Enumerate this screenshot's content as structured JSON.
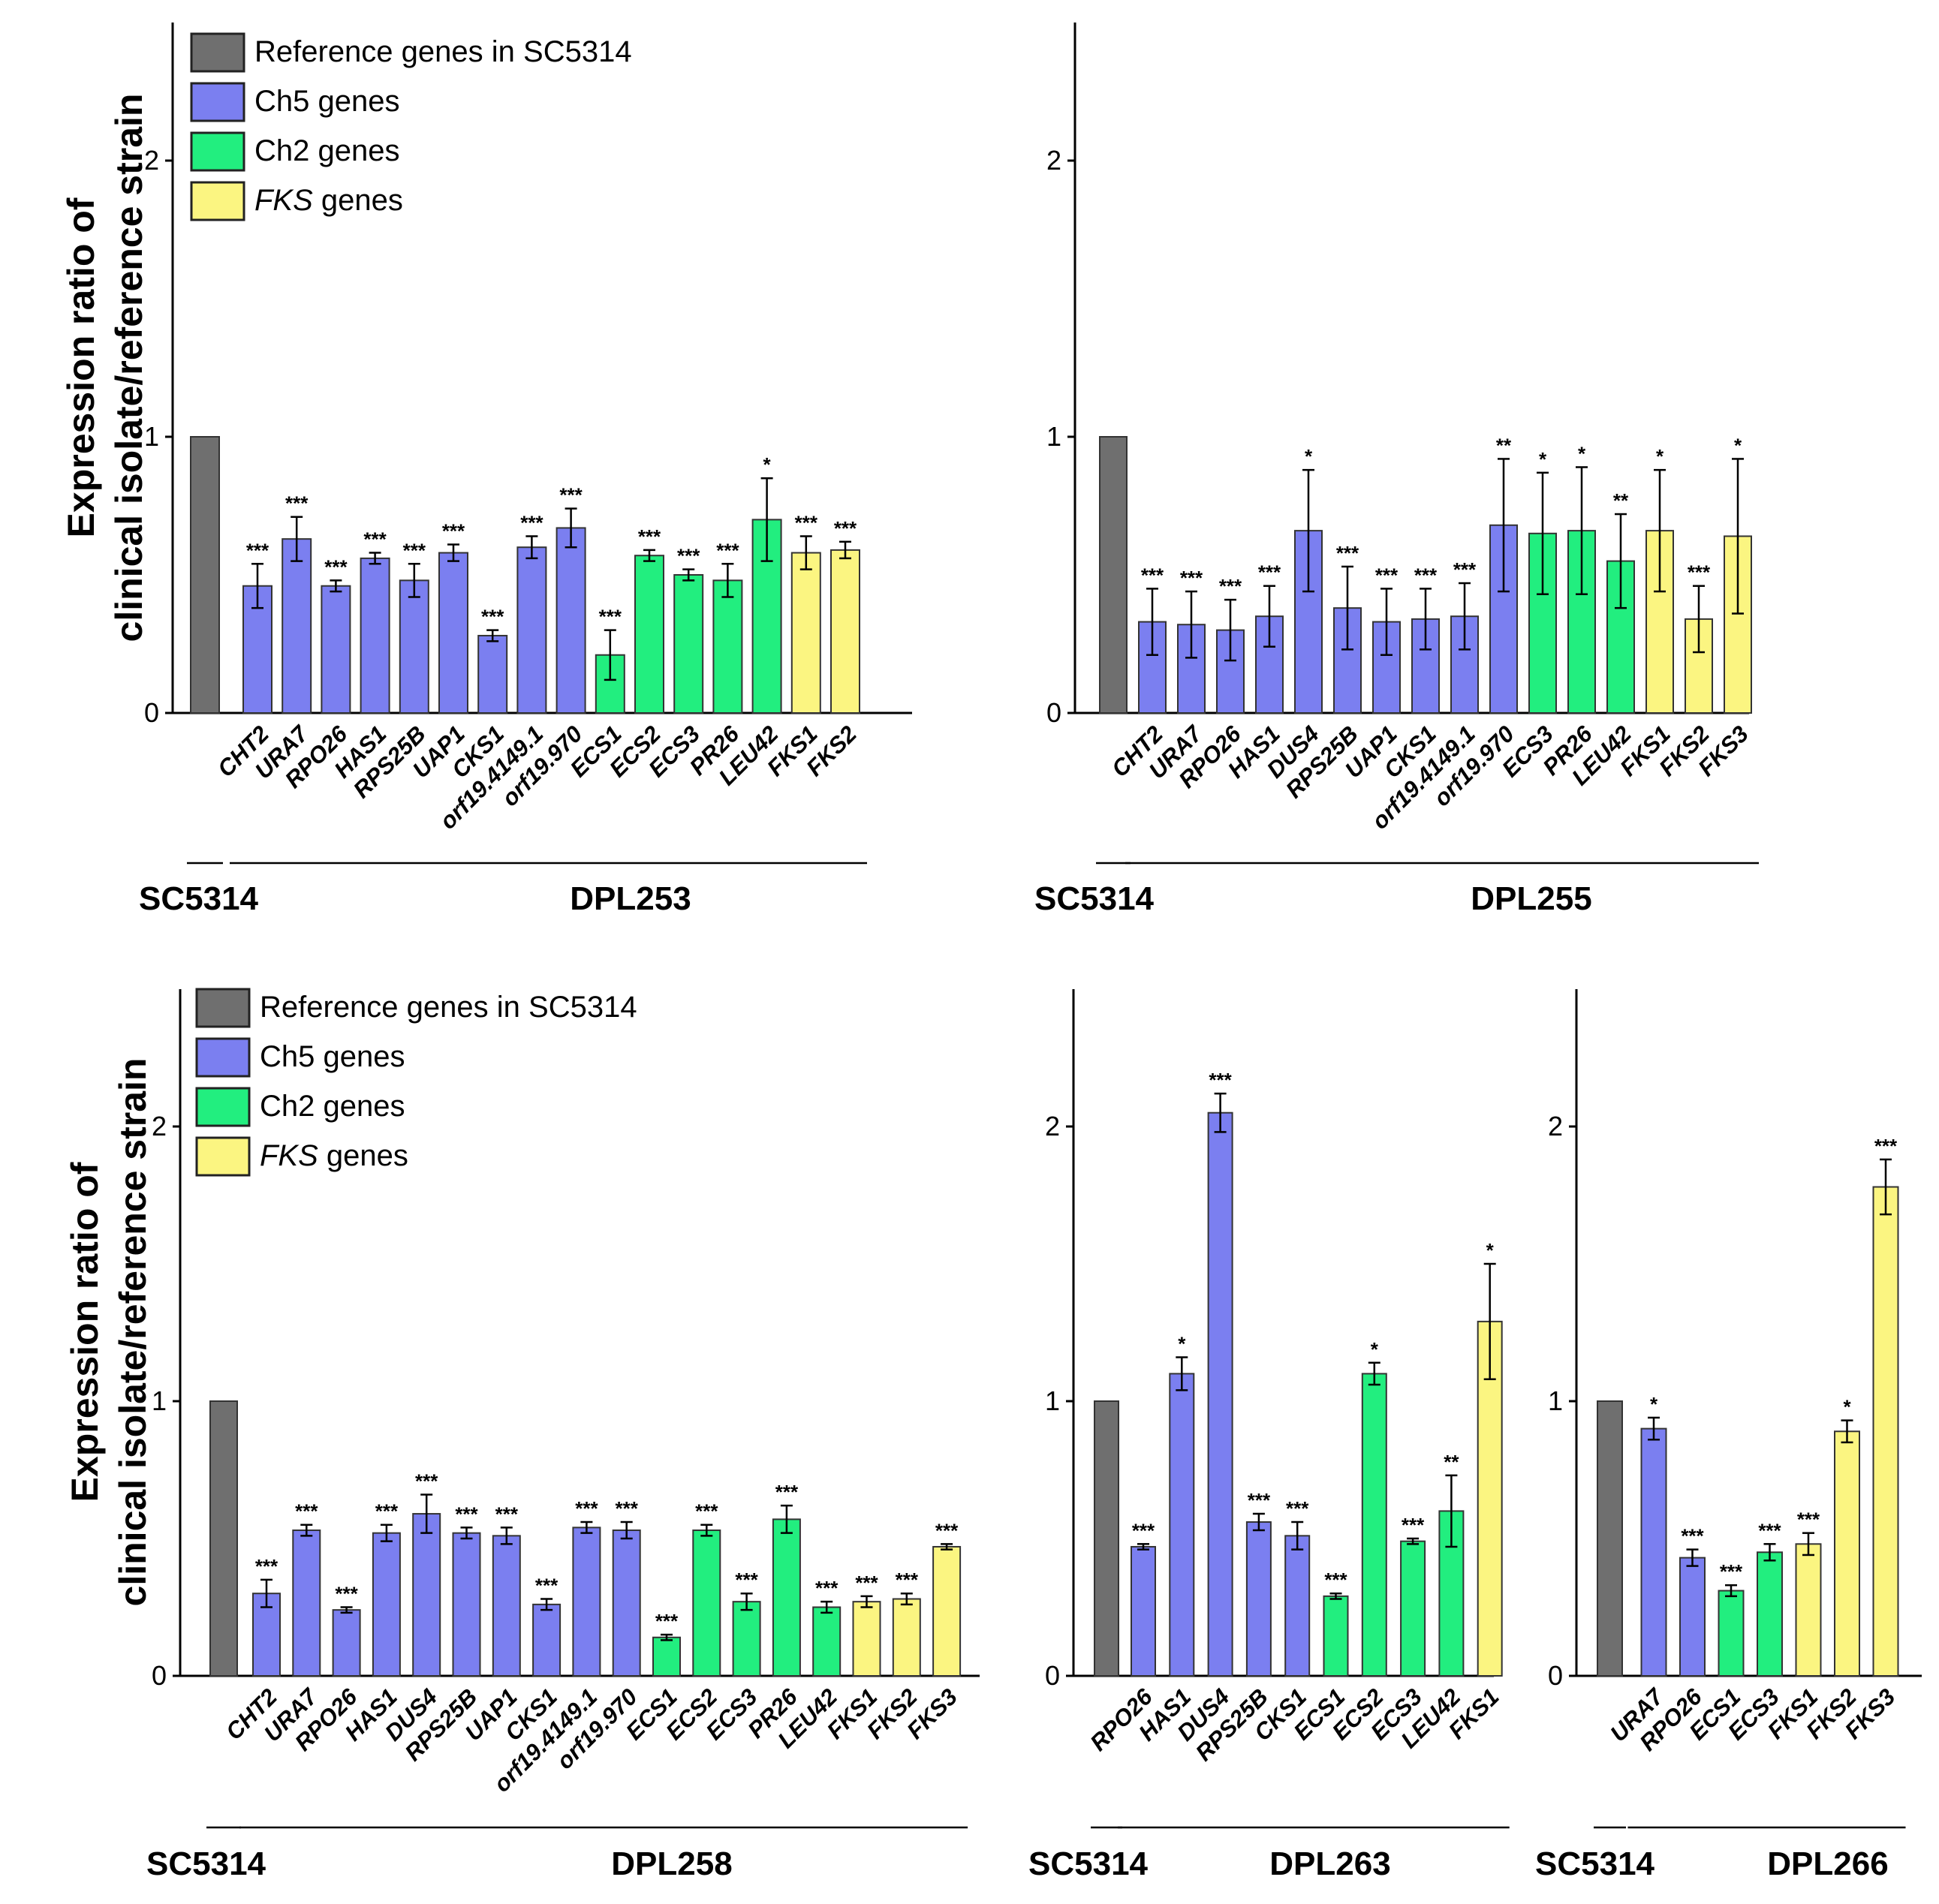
{
  "colors": {
    "ref": "#6f6f6f",
    "ch5": "#7b7ff0",
    "ch2": "#22ee7f",
    "fks": "#fbf581",
    "axis": "#000000"
  },
  "legend": [
    {
      "key": "ref",
      "label": "Reference genes in SC5314",
      "italic": "",
      "rest": ""
    },
    {
      "key": "ch5",
      "label": "Ch5 genes",
      "italic": "",
      "rest": ""
    },
    {
      "key": "ch2",
      "label": "Ch2 genes",
      "italic": "",
      "rest": ""
    },
    {
      "key": "fks",
      "label": "",
      "italic": "FKS",
      "rest": " genes"
    }
  ],
  "ylabel_line1": "Expression ratio of",
  "ylabel_line2": "clinical isolate/reference strain",
  "chart_data": [
    {
      "type": "bar",
      "ylabel": "Expression ratio of clinical isolate/reference strain",
      "ylim": [
        0,
        2.5
      ],
      "yticks": [
        "0",
        "1",
        "2"
      ],
      "ref_label": "SC5314",
      "group_label": "DPL253",
      "categories": [
        "CHT2",
        "URA7",
        "RPO26",
        "HAS1",
        "RPS25B",
        "UAP1",
        "CKS1",
        "orf19.4149.1",
        "orf19.970",
        "ECS1",
        "ECS2",
        "ECS3",
        "PR26",
        "LEU42",
        "FKS1",
        "FKS2"
      ],
      "values": [
        0.46,
        0.63,
        0.46,
        0.56,
        0.48,
        0.58,
        0.28,
        0.6,
        0.67,
        0.21,
        0.57,
        0.5,
        0.48,
        0.7,
        0.58,
        0.59
      ],
      "errors": [
        0.08,
        0.08,
        0.02,
        0.02,
        0.06,
        0.03,
        0.02,
        0.04,
        0.07,
        0.09,
        0.02,
        0.02,
        0.06,
        0.15,
        0.06,
        0.03
      ],
      "groups": [
        "ch5",
        "ch5",
        "ch5",
        "ch5",
        "ch5",
        "ch5",
        "ch5",
        "ch5",
        "ch5",
        "ch2",
        "ch2",
        "ch2",
        "ch2",
        "ch2",
        "fks",
        "fks"
      ],
      "significance": [
        "***",
        "***",
        "***",
        "***",
        "***",
        "***",
        "***",
        "***",
        "***",
        "***",
        "***",
        "***",
        "***",
        "*",
        "***",
        "***"
      ],
      "reference_value": 1.0,
      "legend": "top-left"
    },
    {
      "type": "bar",
      "ylim": [
        0,
        2.5
      ],
      "yticks": [
        "0",
        "1",
        "2"
      ],
      "ref_label": "SC5314",
      "group_label": "DPL255",
      "categories": [
        "CHT2",
        "URA7",
        "RPO26",
        "HAS1",
        "DUS4",
        "RPS25B",
        "UAP1",
        "CKS1",
        "orf19.4149.1",
        "orf19.970",
        "ECS3",
        "PR26",
        "LEU42",
        "FKS1",
        "FKS2",
        "FKS3"
      ],
      "values": [
        0.33,
        0.32,
        0.3,
        0.35,
        0.66,
        0.38,
        0.33,
        0.34,
        0.35,
        0.68,
        0.65,
        0.66,
        0.55,
        0.66,
        0.34,
        0.64
      ],
      "errors": [
        0.12,
        0.12,
        0.11,
        0.11,
        0.22,
        0.15,
        0.12,
        0.11,
        0.12,
        0.24,
        0.22,
        0.23,
        0.17,
        0.22,
        0.12,
        0.28
      ],
      "groups": [
        "ch5",
        "ch5",
        "ch5",
        "ch5",
        "ch5",
        "ch5",
        "ch5",
        "ch5",
        "ch5",
        "ch5",
        "ch2",
        "ch2",
        "ch2",
        "fks",
        "fks",
        "fks"
      ],
      "significance": [
        "***",
        "***",
        "***",
        "***",
        "*",
        "***",
        "***",
        "***",
        "***",
        "**",
        "*",
        "*",
        "**",
        "*",
        "***",
        "*"
      ],
      "reference_value": 1.0
    },
    {
      "type": "bar",
      "ylabel": "Expression ratio of clinical isolate/reference strain",
      "ylim": [
        0,
        2.5
      ],
      "yticks": [
        "0",
        "1",
        "2"
      ],
      "ref_label": "SC5314",
      "group_label": "DPL258",
      "categories": [
        "CHT2",
        "URA7",
        "RPO26",
        "HAS1",
        "DUS4",
        "RPS25B",
        "UAP1",
        "CKS1",
        "orf19.4149.1",
        "orf19.970",
        "ECS1",
        "ECS2",
        "ECS3",
        "PR26",
        "LEU42",
        "FKS1",
        "FKS2",
        "FKS3"
      ],
      "values": [
        0.3,
        0.53,
        0.24,
        0.52,
        0.59,
        0.52,
        0.51,
        0.26,
        0.54,
        0.53,
        0.14,
        0.53,
        0.27,
        0.57,
        0.25,
        0.27,
        0.28,
        0.47
      ],
      "errors": [
        0.05,
        0.02,
        0.01,
        0.03,
        0.07,
        0.02,
        0.03,
        0.02,
        0.02,
        0.03,
        0.01,
        0.02,
        0.03,
        0.05,
        0.02,
        0.02,
        0.02,
        0.01
      ],
      "groups": [
        "ch5",
        "ch5",
        "ch5",
        "ch5",
        "ch5",
        "ch5",
        "ch5",
        "ch5",
        "ch5",
        "ch5",
        "ch2",
        "ch2",
        "ch2",
        "ch2",
        "ch2",
        "fks",
        "fks",
        "fks"
      ],
      "significance": [
        "***",
        "***",
        "***",
        "***",
        "***",
        "***",
        "***",
        "***",
        "***",
        "***",
        "***",
        "***",
        "***",
        "***",
        "***",
        "***",
        "***",
        "***"
      ],
      "reference_value": 1.0,
      "legend": "top-left"
    },
    {
      "type": "bar",
      "ylim": [
        0,
        2.5
      ],
      "yticks": [
        "0",
        "1",
        "2"
      ],
      "ref_label": "SC5314",
      "group_label": "DPL263",
      "categories": [
        "RPO26",
        "HAS1",
        "DUS4",
        "RPS25B",
        "CKS1",
        "ECS1",
        "ECS2",
        "ECS3",
        "LEU42",
        "FKS1"
      ],
      "values": [
        0.47,
        1.1,
        2.05,
        0.56,
        0.51,
        0.29,
        1.1,
        0.49,
        0.6,
        1.29
      ],
      "errors": [
        0.01,
        0.06,
        0.07,
        0.03,
        0.05,
        0.01,
        0.04,
        0.01,
        0.13,
        0.21
      ],
      "groups": [
        "ch5",
        "ch5",
        "ch5",
        "ch5",
        "ch5",
        "ch2",
        "ch2",
        "ch2",
        "ch2",
        "fks"
      ],
      "significance": [
        "***",
        "*",
        "***",
        "***",
        "***",
        "***",
        "*",
        "***",
        "**",
        "*"
      ],
      "reference_value": 1.0
    },
    {
      "type": "bar",
      "ylim": [
        0,
        2.5
      ],
      "yticks": [
        "0",
        "1",
        "2"
      ],
      "ref_label": "SC5314",
      "group_label": "DPL266",
      "categories": [
        "URA7",
        "RPO26",
        "ECS1",
        "ECS3",
        "FKS1",
        "FKS2",
        "FKS3"
      ],
      "values": [
        0.9,
        0.43,
        0.31,
        0.45,
        0.48,
        0.89,
        1.78
      ],
      "errors": [
        0.04,
        0.03,
        0.02,
        0.03,
        0.04,
        0.04,
        0.1
      ],
      "groups": [
        "ch5",
        "ch5",
        "ch2",
        "ch2",
        "fks",
        "fks",
        "fks"
      ],
      "significance": [
        "*",
        "***",
        "***",
        "***",
        "***",
        "*",
        "***"
      ],
      "reference_value": 1.0
    }
  ]
}
